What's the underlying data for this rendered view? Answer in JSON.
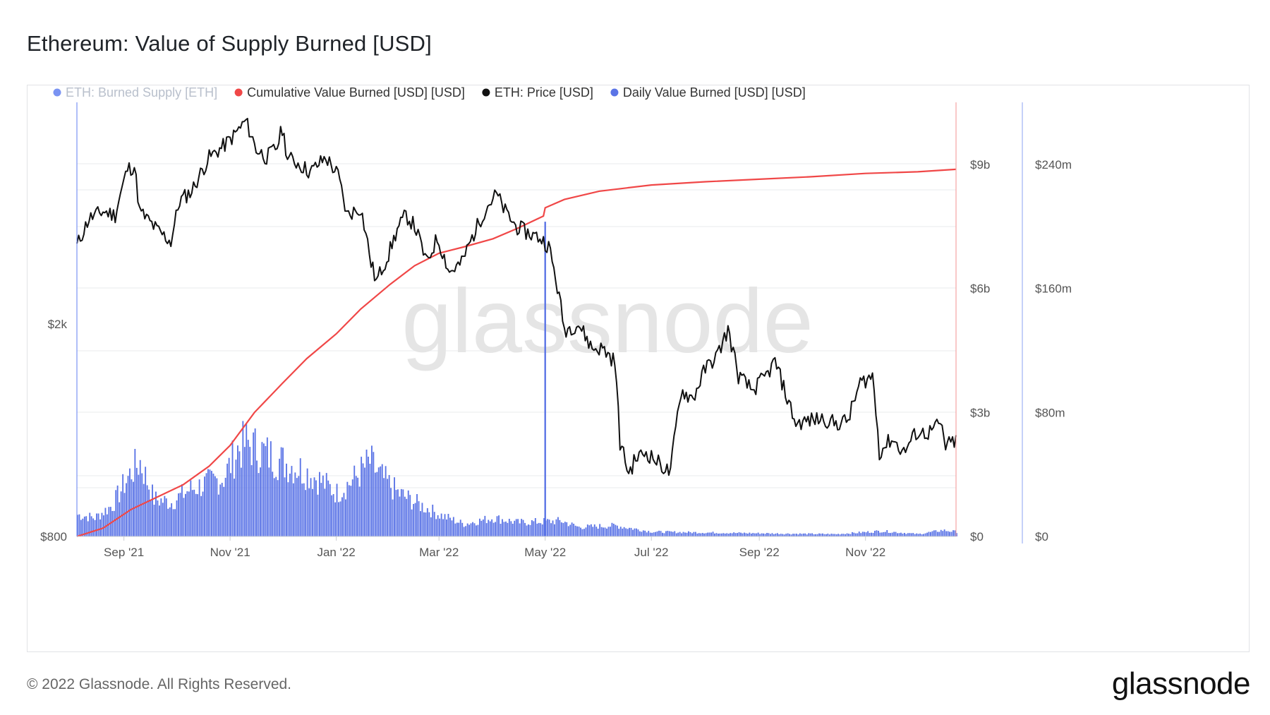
{
  "title": "Ethereum: Value of Supply Burned [USD]",
  "footer": {
    "copyright": "© 2022 Glassnode. All Rights Reserved.",
    "logo": "glassnode"
  },
  "watermark": "glassnode",
  "colors": {
    "burned_eth": "#6f8cf0",
    "cumulative": "#f04747",
    "price": "#111111",
    "daily": "#5b74e6",
    "grid": "#e9ebee"
  },
  "chart_data": {
    "type": "line",
    "x_tick_labels": [
      "Sep '21",
      "Nov '21",
      "Jan '22",
      "Mar '22",
      "May '22",
      "Jul '22",
      "Sep '22",
      "Nov '22"
    ],
    "x_tick_dates": [
      "2021-09-01",
      "2021-11-01",
      "2022-01-01",
      "2022-03-01",
      "2022-05-01",
      "2022-07-01",
      "2022-09-01",
      "2022-11-01"
    ],
    "x_range": [
      "2021-08-05",
      "2022-12-23"
    ],
    "legend": [
      {
        "name": "ETH: Burned Supply [ETH]",
        "color": "#7a93f2",
        "muted": true
      },
      {
        "name": "Cumulative Value Burned [USD] [USD]",
        "color": "#f04747"
      },
      {
        "name": "ETH: Price [USD]",
        "color": "#111111"
      },
      {
        "name": "Daily Value Burned [USD] [USD]",
        "color": "#5b74e6"
      }
    ],
    "axes": {
      "price": {
        "scale": "log",
        "range": [
          800,
          5200
        ],
        "tick_labels": [
          "$2k",
          "$800"
        ],
        "tick_values": [
          2000,
          800
        ]
      },
      "cumulative": {
        "range": [
          0,
          10500000000
        ],
        "tick_labels": [
          "$9b",
          "$6b",
          "$3b",
          "$0"
        ],
        "tick_values": [
          9000000000,
          6000000000,
          3000000000,
          0
        ]
      },
      "daily": {
        "range": [
          0,
          280000000
        ],
        "tick_labels": [
          "$240m",
          "$160m",
          "$80m",
          "$0"
        ],
        "tick_values": [
          240000000,
          160000000,
          80000000,
          0
        ]
      }
    },
    "series": [
      {
        "name": "ETH: Price [USD]",
        "axis": "price",
        "points": [
          [
            "2021-08-05",
            2800
          ],
          [
            "2021-08-12",
            3150
          ],
          [
            "2021-08-20",
            3250
          ],
          [
            "2021-08-27",
            3200
          ],
          [
            "2021-09-03",
            3900
          ],
          [
            "2021-09-07",
            3950
          ],
          [
            "2021-09-10",
            3250
          ],
          [
            "2021-09-20",
            3000
          ],
          [
            "2021-09-28",
            2850
          ],
          [
            "2021-10-03",
            3400
          ],
          [
            "2021-10-10",
            3550
          ],
          [
            "2021-10-20",
            4100
          ],
          [
            "2021-10-28",
            4300
          ],
          [
            "2021-11-03",
            4500
          ],
          [
            "2021-11-10",
            4800
          ],
          [
            "2021-11-16",
            4250
          ],
          [
            "2021-11-22",
            4100
          ],
          [
            "2021-11-28",
            4300
          ],
          [
            "2021-12-01",
            4650
          ],
          [
            "2021-12-04",
            4100
          ],
          [
            "2021-12-10",
            4000
          ],
          [
            "2021-12-17",
            3850
          ],
          [
            "2021-12-26",
            4100
          ],
          [
            "2022-01-02",
            3800
          ],
          [
            "2022-01-07",
            3200
          ],
          [
            "2022-01-15",
            3300
          ],
          [
            "2022-01-21",
            2600
          ],
          [
            "2022-01-24",
            2400
          ],
          [
            "2022-01-31",
            2700
          ],
          [
            "2022-02-05",
            3000
          ],
          [
            "2022-02-10",
            3200
          ],
          [
            "2022-02-15",
            3050
          ],
          [
            "2022-02-22",
            2600
          ],
          [
            "2022-02-28",
            2900
          ],
          [
            "2022-03-07",
            2500
          ],
          [
            "2022-03-14",
            2600
          ],
          [
            "2022-03-21",
            2950
          ],
          [
            "2022-03-28",
            3300
          ],
          [
            "2022-04-03",
            3500
          ],
          [
            "2022-04-08",
            3250
          ],
          [
            "2022-04-14",
            3050
          ],
          [
            "2022-04-22",
            2950
          ],
          [
            "2022-04-28",
            2900
          ],
          [
            "2022-05-03",
            2800
          ],
          [
            "2022-05-09",
            2250
          ],
          [
            "2022-05-12",
            1950
          ],
          [
            "2022-05-20",
            2000
          ],
          [
            "2022-05-28",
            1800
          ],
          [
            "2022-06-03",
            1800
          ],
          [
            "2022-06-10",
            1700
          ],
          [
            "2022-06-13",
            1200
          ],
          [
            "2022-06-18",
            1050
          ],
          [
            "2022-06-22",
            1120
          ],
          [
            "2022-06-28",
            1150
          ],
          [
            "2022-07-05",
            1100
          ],
          [
            "2022-07-12",
            1050
          ],
          [
            "2022-07-18",
            1500
          ],
          [
            "2022-07-25",
            1450
          ],
          [
            "2022-08-01",
            1650
          ],
          [
            "2022-08-08",
            1750
          ],
          [
            "2022-08-14",
            1950
          ],
          [
            "2022-08-20",
            1600
          ],
          [
            "2022-08-28",
            1500
          ],
          [
            "2022-09-05",
            1600
          ],
          [
            "2022-09-10",
            1700
          ],
          [
            "2022-09-17",
            1450
          ],
          [
            "2022-09-22",
            1300
          ],
          [
            "2022-09-30",
            1320
          ],
          [
            "2022-10-08",
            1330
          ],
          [
            "2022-10-15",
            1300
          ],
          [
            "2022-10-22",
            1320
          ],
          [
            "2022-10-29",
            1550
          ],
          [
            "2022-11-05",
            1600
          ],
          [
            "2022-11-09",
            1150
          ],
          [
            "2022-11-16",
            1220
          ],
          [
            "2022-11-23",
            1150
          ],
          [
            "2022-11-30",
            1250
          ],
          [
            "2022-12-07",
            1250
          ],
          [
            "2022-12-14",
            1300
          ],
          [
            "2022-12-17",
            1180
          ],
          [
            "2022-12-23",
            1210
          ]
        ]
      },
      {
        "name": "Cumulative Value Burned [USD] [USD]",
        "axis": "cumulative",
        "points": [
          [
            "2021-08-05",
            0
          ],
          [
            "2021-08-20",
            200000000
          ],
          [
            "2021-09-05",
            650000000
          ],
          [
            "2021-09-20",
            950000000
          ],
          [
            "2021-10-05",
            1250000000
          ],
          [
            "2021-10-20",
            1700000000
          ],
          [
            "2021-11-01",
            2200000000
          ],
          [
            "2021-11-15",
            3000000000
          ],
          [
            "2021-12-01",
            3700000000
          ],
          [
            "2021-12-15",
            4300000000
          ],
          [
            "2022-01-01",
            4900000000
          ],
          [
            "2022-01-15",
            5500000000
          ],
          [
            "2022-02-01",
            6100000000
          ],
          [
            "2022-02-15",
            6550000000
          ],
          [
            "2022-03-01",
            6850000000
          ],
          [
            "2022-03-15",
            7000000000
          ],
          [
            "2022-04-01",
            7200000000
          ],
          [
            "2022-04-15",
            7450000000
          ],
          [
            "2022-04-30",
            7750000000
          ],
          [
            "2022-05-01",
            7950000000
          ],
          [
            "2022-05-12",
            8150000000
          ],
          [
            "2022-06-01",
            8350000000
          ],
          [
            "2022-07-01",
            8500000000
          ],
          [
            "2022-08-01",
            8580000000
          ],
          [
            "2022-09-01",
            8640000000
          ],
          [
            "2022-10-01",
            8700000000
          ],
          [
            "2022-11-01",
            8780000000
          ],
          [
            "2022-12-01",
            8820000000
          ],
          [
            "2022-12-23",
            8880000000
          ]
        ]
      },
      {
        "name": "Daily Value Burned [USD] [USD]",
        "axis": "daily",
        "spike": [
          "2022-05-01",
          203000000
        ],
        "points": [
          [
            "2021-08-05",
            14000000
          ],
          [
            "2021-08-15",
            12000000
          ],
          [
            "2021-08-25",
            20000000
          ],
          [
            "2021-09-05",
            42000000
          ],
          [
            "2021-09-10",
            48000000
          ],
          [
            "2021-09-18",
            24000000
          ],
          [
            "2021-09-28",
            22000000
          ],
          [
            "2021-10-08",
            30000000
          ],
          [
            "2021-10-18",
            34000000
          ],
          [
            "2021-10-28",
            38000000
          ],
          [
            "2021-11-05",
            56000000
          ],
          [
            "2021-11-10",
            60000000
          ],
          [
            "2021-11-20",
            54000000
          ],
          [
            "2021-12-01",
            48000000
          ],
          [
            "2021-12-10",
            44000000
          ],
          [
            "2021-12-20",
            38000000
          ],
          [
            "2022-01-01",
            28000000
          ],
          [
            "2022-01-10",
            36000000
          ],
          [
            "2022-01-20",
            48000000
          ],
          [
            "2022-01-25",
            40000000
          ],
          [
            "2022-02-05",
            28000000
          ],
          [
            "2022-02-15",
            22000000
          ],
          [
            "2022-03-01",
            14000000
          ],
          [
            "2022-03-15",
            8000000
          ],
          [
            "2022-04-01",
            12000000
          ],
          [
            "2022-04-15",
            9000000
          ],
          [
            "2022-05-10",
            10000000
          ],
          [
            "2022-05-20",
            6000000
          ],
          [
            "2022-06-10",
            7000000
          ],
          [
            "2022-07-01",
            3000000
          ],
          [
            "2022-08-01",
            2500000
          ],
          [
            "2022-09-15",
            1800000
          ],
          [
            "2022-10-15",
            1500000
          ],
          [
            "2022-11-10",
            3500000
          ],
          [
            "2022-12-01",
            1500000
          ],
          [
            "2022-12-15",
            4000000
          ],
          [
            "2022-12-23",
            3000000
          ]
        ]
      },
      {
        "name": "ETH: Burned Supply [ETH]",
        "muted": true,
        "points": []
      }
    ]
  }
}
